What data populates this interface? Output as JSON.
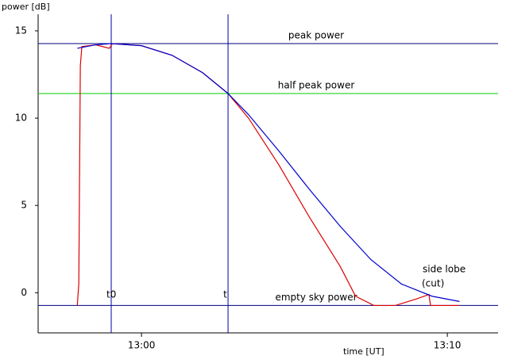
{
  "chart_data": {
    "type": "line",
    "ylabel": "power [dB]",
    "xlabel": "time [UT]",
    "xlim": [
      -3.38,
      11.66
    ],
    "ylim": [
      -2.3,
      15.95
    ],
    "xticks": [
      {
        "value": 0,
        "label": "13:00"
      },
      {
        "value": 10,
        "label": "13:10"
      }
    ],
    "yticks": [
      0,
      5,
      10,
      15
    ],
    "series": [
      {
        "color": "#dd0000",
        "x": [
          -2.1,
          -2.05,
          -2.0,
          -1.95,
          -1.5,
          -1.05,
          -0.95,
          0,
          1,
          2,
          2.83,
          3.5,
          4.5,
          5.5,
          6.5,
          7.0,
          7.6,
          8.3,
          9.0,
          9.4,
          9.45,
          10.4
        ],
        "values": [
          -0.73,
          0.5,
          13.0,
          14.1,
          14.2,
          14.0,
          14.27,
          14.15,
          13.6,
          12.6,
          11.41,
          10.0,
          7.3,
          4.3,
          1.5,
          -0.2,
          -0.73,
          -0.73,
          -0.35,
          -0.1,
          -0.73,
          -0.73
        ]
      },
      {
        "color": "#0000cc",
        "x": [
          -2.1,
          -1.5,
          -1,
          0,
          1,
          2,
          2.83,
          3.5,
          4.5,
          5.5,
          6.5,
          7.5,
          8.5,
          9.5,
          10.4
        ],
        "values": [
          14.0,
          14.2,
          14.27,
          14.15,
          13.6,
          12.6,
          11.41,
          10.2,
          8.1,
          5.9,
          3.8,
          1.9,
          0.5,
          -0.2,
          -0.5
        ]
      }
    ],
    "hlines": [
      {
        "value": 14.27,
        "label": "peak power",
        "color": "#000080"
      },
      {
        "value": 11.41,
        "label": "half peak power",
        "color": "#00cc00"
      },
      {
        "value": -0.73,
        "label": "empty sky power",
        "color": "#000080"
      }
    ],
    "vlines": [
      {
        "value": -0.99,
        "label": "t0",
        "color": "#0000aa"
      },
      {
        "value": 2.83,
        "label": "t",
        "color": "#0000aa"
      }
    ],
    "annotations": [
      "side lobe",
      "(cut)"
    ]
  }
}
